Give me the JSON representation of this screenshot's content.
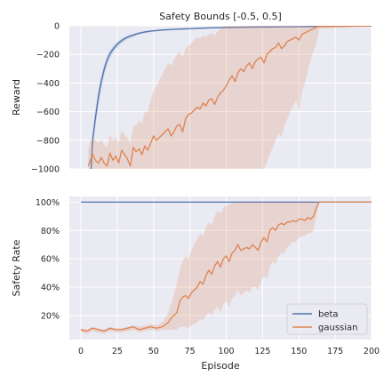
{
  "chart_data": [
    {
      "type": "line",
      "title": "Safety Bounds [-0.5, 0.5]",
      "xlabel": "",
      "ylabel": "Reward",
      "xlim": [
        -8,
        200
      ],
      "ylim": [
        -1000,
        0
      ],
      "xticks": [],
      "yticks": [
        0,
        -200,
        -400,
        -600,
        -800,
        -1000
      ],
      "ytick_labels": [
        "0",
        "−200",
        "−400",
        "−600",
        "−800",
        "−1000"
      ],
      "grid": true,
      "series": [
        {
          "name": "beta",
          "color": "#4c72b0",
          "x": [
            7,
            8,
            9,
            10,
            11,
            12,
            13,
            14,
            15,
            16,
            17,
            18,
            19,
            20,
            22,
            24,
            26,
            28,
            30,
            32,
            34,
            36,
            38,
            40,
            43,
            46,
            50,
            55,
            60,
            65,
            70,
            75,
            80,
            85,
            90,
            100,
            110,
            120,
            130,
            140,
            150,
            160,
            170,
            175,
            180,
            190,
            200
          ],
          "y": [
            -1000,
            -800,
            -720,
            -640,
            -570,
            -500,
            -440,
            -390,
            -345,
            -305,
            -270,
            -240,
            -215,
            -195,
            -165,
            -140,
            -120,
            -103,
            -90,
            -80,
            -72,
            -65,
            -58,
            -52,
            -45,
            -40,
            -35,
            -30,
            -27,
            -24,
            -22,
            -20,
            -18,
            -16,
            -14,
            -12,
            -10,
            -9,
            -8,
            -7,
            -6,
            -5,
            -4,
            -3,
            -3,
            -2,
            -2
          ],
          "band_upper": [
            -900,
            -740,
            -660,
            -580,
            -510,
            -445,
            -390,
            -345,
            -305,
            -270,
            -240,
            -212,
            -190,
            -170,
            -145,
            -122,
            -104,
            -90,
            -78,
            -69,
            -62,
            -56,
            -50,
            -45,
            -39,
            -34,
            -30,
            -26,
            -23,
            -20,
            -18,
            -16,
            -15,
            -13,
            -11,
            -9,
            -8,
            -7,
            -6,
            -5,
            -4,
            -3,
            -3,
            -2,
            -2,
            -1,
            -1
          ],
          "band_lower": [
            -1000,
            -860,
            -780,
            -700,
            -630,
            -560,
            -495,
            -440,
            -390,
            -345,
            -305,
            -272,
            -245,
            -225,
            -190,
            -162,
            -140,
            -120,
            -106,
            -93,
            -84,
            -76,
            -68,
            -61,
            -53,
            -48,
            -42,
            -36,
            -32,
            -29,
            -27,
            -25,
            -23,
            -21,
            -18,
            -16,
            -13,
            -12,
            -11,
            -10,
            -9,
            -8,
            -6,
            -5,
            -4,
            -3,
            -3
          ]
        },
        {
          "name": "gaussian",
          "color": "#dd8452",
          "x": [
            5,
            8,
            10,
            12,
            14,
            16,
            18,
            20,
            22,
            24,
            26,
            28,
            30,
            32,
            34,
            36,
            38,
            40,
            42,
            44,
            46,
            48,
            50,
            52,
            54,
            56,
            58,
            60,
            62,
            64,
            66,
            68,
            70,
            72,
            74,
            76,
            78,
            80,
            82,
            84,
            86,
            88,
            90,
            92,
            94,
            96,
            98,
            100,
            102,
            104,
            106,
            108,
            110,
            112,
            114,
            116,
            118,
            120,
            122,
            124,
            126,
            128,
            130,
            132,
            134,
            136,
            138,
            140,
            142,
            144,
            146,
            148,
            150,
            152,
            154,
            156,
            158,
            160,
            162,
            164,
            200
          ],
          "y": [
            -980,
            -900,
            -940,
            -960,
            -920,
            -960,
            -980,
            -890,
            -940,
            -910,
            -960,
            -870,
            -900,
            -930,
            -980,
            -850,
            -880,
            -860,
            -900,
            -840,
            -870,
            -820,
            -770,
            -800,
            -780,
            -760,
            -740,
            -720,
            -770,
            -740,
            -700,
            -690,
            -740,
            -650,
            -620,
            -610,
            -590,
            -570,
            -580,
            -540,
            -560,
            -520,
            -510,
            -550,
            -500,
            -470,
            -450,
            -420,
            -380,
            -350,
            -390,
            -330,
            -300,
            -320,
            -280,
            -260,
            -300,
            -250,
            -230,
            -220,
            -260,
            -200,
            -180,
            -160,
            -150,
            -120,
            -160,
            -140,
            -110,
            -100,
            -90,
            -80,
            -100,
            -60,
            -50,
            -40,
            -30,
            -20,
            -10,
            -5,
            -1
          ],
          "band_upper": [
            -850,
            -780,
            -800,
            -820,
            -790,
            -830,
            -850,
            -760,
            -800,
            -780,
            -820,
            -730,
            -760,
            -780,
            -820,
            -700,
            -700,
            -660,
            -680,
            -600,
            -600,
            -520,
            -450,
            -420,
            -380,
            -340,
            -300,
            -260,
            -280,
            -240,
            -200,
            -180,
            -220,
            -160,
            -140,
            -120,
            -100,
            -80,
            -90,
            -70,
            -80,
            -60,
            -50,
            -70,
            -40,
            -20,
            0,
            0,
            0,
            0,
            0,
            0,
            0,
            0,
            0,
            0,
            0,
            0,
            0,
            0,
            0,
            0,
            0,
            0,
            0,
            0,
            0,
            0,
            0,
            0,
            0,
            0,
            0,
            0,
            0,
            0,
            0,
            0,
            0,
            0,
            0
          ],
          "band_lower": [
            -1000,
            -1000,
            -1000,
            -1000,
            -1000,
            -1000,
            -1000,
            -1000,
            -1000,
            -1000,
            -1000,
            -1000,
            -1000,
            -1000,
            -1000,
            -1000,
            -1000,
            -1000,
            -1000,
            -1000,
            -1000,
            -1000,
            -1000,
            -1000,
            -1000,
            -1000,
            -1000,
            -1000,
            -1000,
            -1000,
            -1000,
            -1000,
            -1000,
            -1000,
            -1000,
            -1000,
            -1000,
            -1000,
            -1000,
            -1000,
            -1000,
            -1000,
            -1000,
            -1000,
            -1000,
            -1000,
            -1000,
            -1000,
            -1000,
            -1000,
            -1000,
            -1000,
            -1000,
            -1000,
            -1000,
            -1000,
            -1000,
            -1000,
            -1000,
            -1000,
            -1000,
            -950,
            -900,
            -850,
            -800,
            -750,
            -780,
            -700,
            -650,
            -600,
            -560,
            -520,
            -600,
            -460,
            -400,
            -320,
            -240,
            -180,
            -120,
            -20,
            -4
          ]
        }
      ]
    },
    {
      "type": "line",
      "title": "",
      "xlabel": "Episode",
      "ylabel": "Safety Rate",
      "xlim": [
        -8,
        200
      ],
      "ylim": [
        3,
        104
      ],
      "xticks": [
        0,
        25,
        50,
        75,
        100,
        125,
        150,
        175,
        200
      ],
      "xtick_labels": [
        "0",
        "25",
        "50",
        "75",
        "100",
        "125",
        "150",
        "175",
        "200"
      ],
      "yticks": [
        20,
        40,
        60,
        80,
        100
      ],
      "ytick_labels": [
        "20%",
        "40%",
        "60%",
        "80%",
        "100%"
      ],
      "grid": true,
      "legend": "lower-right",
      "series": [
        {
          "name": "beta",
          "color": "#4c72b0",
          "x": [
            0,
            200
          ],
          "y": [
            100,
            100
          ],
          "band_upper": [
            100,
            100
          ],
          "band_lower": [
            100,
            100
          ]
        },
        {
          "name": "gaussian",
          "color": "#dd8452",
          "x": [
            0,
            4,
            8,
            12,
            16,
            20,
            24,
            28,
            32,
            36,
            40,
            44,
            48,
            52,
            56,
            60,
            62,
            64,
            66,
            68,
            70,
            72,
            74,
            76,
            78,
            80,
            82,
            84,
            86,
            88,
            90,
            92,
            94,
            96,
            98,
            100,
            102,
            104,
            106,
            108,
            110,
            112,
            114,
            116,
            118,
            120,
            122,
            124,
            126,
            128,
            130,
            132,
            134,
            136,
            138,
            140,
            142,
            144,
            146,
            148,
            150,
            152,
            154,
            156,
            158,
            160,
            162,
            164,
            170,
            180,
            190,
            200
          ],
          "y": [
            10,
            9,
            11,
            10,
            9,
            11,
            10,
            10,
            11,
            12,
            10,
            11,
            12,
            11,
            12,
            15,
            18,
            20,
            22,
            30,
            33,
            34,
            32,
            36,
            38,
            40,
            44,
            42,
            48,
            52,
            49,
            55,
            58,
            54,
            60,
            62,
            58,
            64,
            66,
            70,
            66,
            67,
            68,
            67,
            70,
            68,
            66,
            72,
            75,
            72,
            80,
            82,
            80,
            84,
            85,
            84,
            86,
            86,
            87,
            86,
            88,
            88,
            87,
            89,
            88,
            90,
            96,
            100,
            100,
            100,
            100,
            100
          ],
          "band_upper": [
            11,
            10,
            12,
            11,
            10,
            12,
            11,
            11,
            12,
            13,
            12,
            13,
            14,
            13,
            15,
            22,
            28,
            35,
            42,
            52,
            58,
            62,
            60,
            66,
            70,
            74,
            78,
            76,
            82,
            86,
            84,
            90,
            94,
            92,
            96,
            98,
            98,
            100,
            100,
            100,
            100,
            100,
            100,
            100,
            100,
            100,
            100,
            100,
            100,
            100,
            100,
            100,
            100,
            100,
            100,
            100,
            100,
            100,
            100,
            100,
            100,
            100,
            100,
            100,
            100,
            100,
            100,
            100,
            100,
            100,
            100,
            100
          ],
          "band_lower": [
            8,
            7,
            9,
            8,
            7,
            9,
            8,
            8,
            9,
            10,
            8,
            9,
            10,
            9,
            10,
            10,
            10,
            10,
            10,
            12,
            12,
            12,
            11,
            13,
            14,
            15,
            18,
            16,
            20,
            22,
            20,
            24,
            26,
            22,
            28,
            30,
            26,
            32,
            34,
            38,
            34,
            36,
            38,
            36,
            40,
            40,
            38,
            44,
            48,
            46,
            54,
            58,
            56,
            62,
            64,
            64,
            68,
            70,
            72,
            72,
            75,
            76,
            76,
            78,
            78,
            80,
            90,
            100,
            100,
            100,
            100,
            100
          ]
        }
      ]
    }
  ]
}
